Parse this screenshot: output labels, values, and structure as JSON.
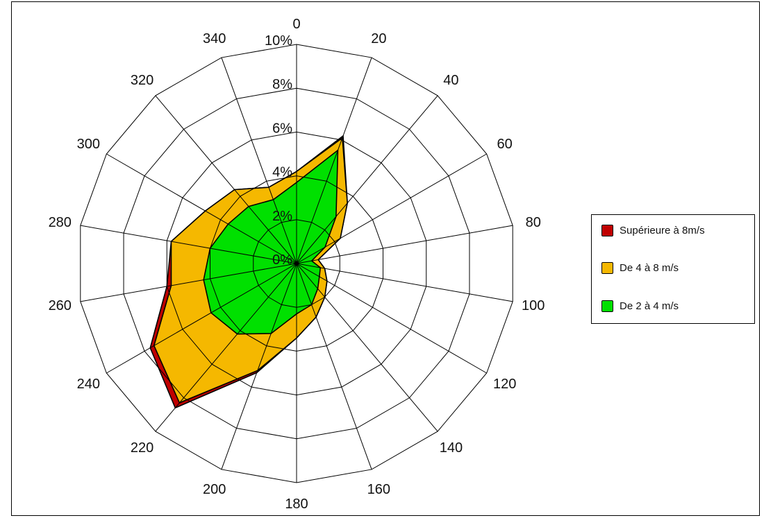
{
  "chart_data": {
    "type": "radar",
    "directions": [
      0,
      20,
      40,
      60,
      80,
      100,
      120,
      140,
      160,
      180,
      200,
      220,
      240,
      260,
      280,
      300,
      320,
      340
    ],
    "radial_ticks": [
      "0%",
      "2%",
      "4%",
      "6%",
      "8%",
      "10%"
    ],
    "rmax": 10,
    "grid": true,
    "legend_position": "right",
    "series": [
      {
        "name": "Supérieure à 8m/s",
        "color": "#c00000",
        "values": [
          4.2,
          6.2,
          3.6,
          2.3,
          1.0,
          1.3,
          1.6,
          2.0,
          2.6,
          3.4,
          5.3,
          8.6,
          7.7,
          6.0,
          5.8,
          4.8,
          4.4,
          3.7
        ]
      },
      {
        "name": "De 4 à 8 m/s",
        "color": "#f5b800",
        "values": [
          4.2,
          6.1,
          3.6,
          2.3,
          1.0,
          1.3,
          1.6,
          2.0,
          2.6,
          3.4,
          5.2,
          8.3,
          7.5,
          5.8,
          5.8,
          4.8,
          4.4,
          3.7
        ]
      },
      {
        "name": "De 2 à 4 m/s",
        "color": "#00e000",
        "values": [
          3.7,
          5.5,
          2.8,
          1.5,
          0.7,
          1.1,
          1.2,
          1.5,
          2.0,
          2.3,
          3.4,
          4.2,
          4.5,
          4.3,
          4.0,
          3.6,
          3.4,
          3.1
        ]
      }
    ]
  }
}
